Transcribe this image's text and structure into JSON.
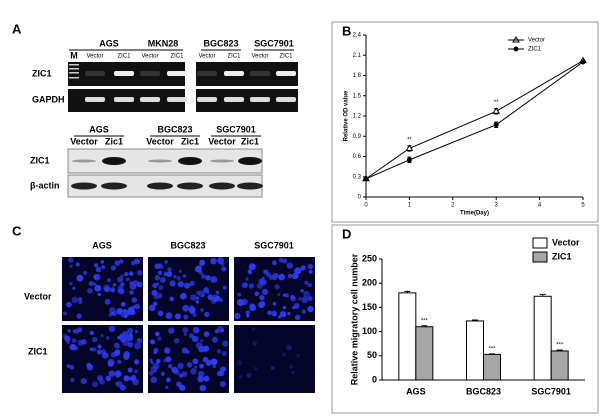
{
  "panel_labels": [
    "A",
    "B",
    "C",
    "D"
  ],
  "gel": {
    "marker": "M",
    "lines_top": [
      "AGS",
      "MKN28",
      "BGC823",
      "SGC7901"
    ],
    "lanes_top": [
      "Vector",
      "ZIC1",
      "Vector",
      "ZIC1",
      "Vector",
      "ZIC1",
      "Vector",
      "ZIC1"
    ],
    "rows_top": [
      "ZIC1",
      "GAPDH"
    ],
    "lines_bottom": [
      "AGS",
      "BGC823",
      "SGC7901"
    ],
    "lanes_bottom": [
      "Vector",
      "Zic1",
      "Vector",
      "Zic1",
      "Vector",
      "Zic1"
    ],
    "rows_bottom": [
      "ZIC1",
      "β-actin"
    ]
  },
  "images": {
    "columns": [
      "AGS",
      "BGC823",
      "SGC7901"
    ],
    "rows": [
      "Vector",
      "ZIC1"
    ]
  },
  "chart_data": [
    {
      "type": "line",
      "xlabel": "Time(Day)",
      "ylabel": "Relative OD value",
      "xlim": [
        0,
        5
      ],
      "xticks": [
        0,
        1,
        2,
        3,
        4,
        5
      ],
      "ylim": [
        0,
        2.4
      ],
      "yticks": [
        0,
        0.3,
        0.6,
        0.9,
        1.2,
        1.5,
        1.8,
        2.1,
        2.4
      ],
      "x": [
        0,
        1,
        3,
        5
      ],
      "series": [
        {
          "name": "Vector",
          "color": "#000000",
          "marker": "triangle",
          "values": [
            0.27,
            0.72,
            1.27,
            2.02
          ],
          "errors": [
            0.01,
            0.04,
            0.04,
            0.01
          ]
        },
        {
          "name": "ZIC1",
          "color": "#000000",
          "marker": "circle",
          "values": [
            0.27,
            0.55,
            1.07,
            2.0
          ],
          "errors": [
            0.01,
            0.04,
            0.04,
            0.01
          ]
        }
      ],
      "annotations": [
        "**",
        "**"
      ],
      "legend": "upper-right"
    },
    {
      "type": "bar",
      "ylabel": "Relative migratory cell number",
      "categories": [
        "AGS",
        "BGC823",
        "SGC7901"
      ],
      "ylim": [
        0,
        250
      ],
      "yticks": [
        0,
        50,
        100,
        150,
        200,
        250
      ],
      "series": [
        {
          "name": "Vector",
          "color": "#ffffff",
          "values": [
            180,
            122,
            173
          ],
          "errors": [
            3,
            2,
            4
          ]
        },
        {
          "name": "ZIC1",
          "color": "#a6a6a6",
          "values": [
            110,
            53,
            60
          ],
          "errors": [
            2,
            1,
            2
          ]
        }
      ],
      "annotations": [
        "***",
        "***",
        "***"
      ],
      "legend": "upper-right"
    }
  ]
}
